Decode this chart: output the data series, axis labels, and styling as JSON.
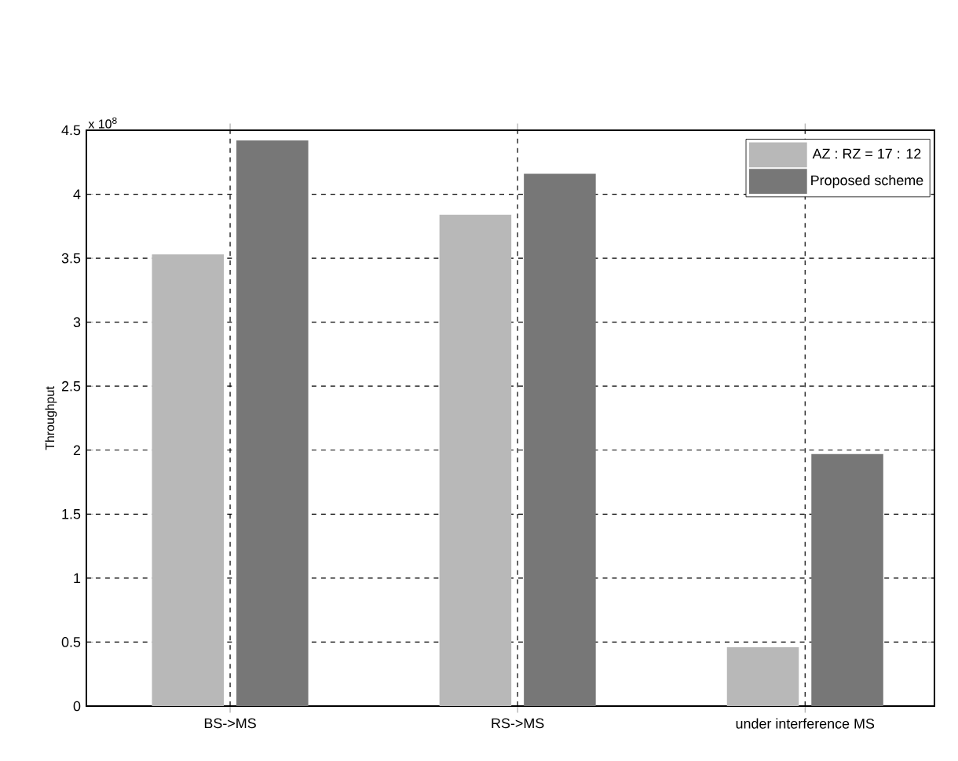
{
  "chart_data": {
    "type": "bar",
    "ylabel": "Throughput",
    "categories": [
      "BS->MS",
      "RS->MS",
      "under interference MS"
    ],
    "series": [
      {
        "name": "AZ : RZ = 17 : 12",
        "color": "#b8b8b8",
        "values": [
          3.53,
          3.84,
          0.46
        ]
      },
      {
        "name": "Proposed scheme",
        "color": "#777777",
        "values": [
          4.42,
          4.16,
          1.97
        ]
      }
    ],
    "ylim": [
      0,
      4.5
    ],
    "yticks": [
      0,
      0.5,
      1,
      1.5,
      2,
      2.5,
      3,
      3.5,
      4,
      4.5
    ],
    "grid": true,
    "legend": "top right",
    "annotations": [
      "x 10$^{8}$"
    ]
  }
}
